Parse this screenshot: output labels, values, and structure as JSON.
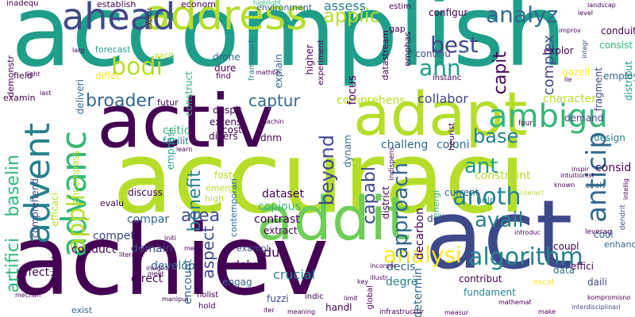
{
  "palette": {
    "dark_purple": "#440154",
    "indigo": "#3e4989",
    "blue": "#31688e",
    "teal": "#26828e",
    "green": "#1f9e89",
    "light_green": "#35b779",
    "yellow_green": "#6ece58",
    "lime": "#b5de2b",
    "yellow": "#fde725",
    "background": "#ffffff"
  },
  "words": [
    {
      "text": "accomplish"
    },
    {
      "text": "accuraci"
    },
    {
      "text": "act"
    },
    {
      "text": "achiev"
    },
    {
      "text": "activ"
    },
    {
      "text": "adapt"
    },
    {
      "text": "address"
    },
    {
      "text": "addit"
    },
    {
      "text": "ahead"
    },
    {
      "text": "advent"
    },
    {
      "text": "advanc"
    },
    {
      "text": "ambigu"
    },
    {
      "text": "anticip"
    },
    {
      "text": "analyz"
    },
    {
      "text": "algorithm"
    },
    {
      "text": "analysi"
    },
    {
      "text": "anoth"
    },
    {
      "text": "approach"
    },
    {
      "text": "applic"
    },
    {
      "text": "appli"
    },
    {
      "text": "artifici"
    },
    {
      "text": "baselin"
    },
    {
      "text": "best"
    },
    {
      "text": "ann"
    },
    {
      "text": "capit"
    },
    {
      "text": "bodi"
    },
    {
      "text": "broader"
    },
    {
      "text": "captur"
    },
    {
      "text": "beyond"
    },
    {
      "text": "capabl"
    },
    {
      "text": "benefit"
    },
    {
      "text": "aspect"
    },
    {
      "text": "area"
    },
    {
      "text": "avail"
    },
    {
      "text": "ant"
    },
    {
      "text": "base"
    },
    {
      "text": "assess"
    },
    {
      "text": "complex"
    },
    {
      "text": "character"
    },
    {
      "text": "collabor"
    },
    {
      "text": "comprehens"
    },
    {
      "text": "challeng"
    },
    {
      "text": "coloni"
    },
    {
      "text": "constraint"
    },
    {
      "text": "current"
    },
    {
      "text": "dataset"
    },
    {
      "text": "copious"
    },
    {
      "text": "compar"
    },
    {
      "text": "contrast"
    },
    {
      "text": "district"
    },
    {
      "text": "decarbon"
    },
    {
      "text": "determin"
    },
    {
      "text": "decis"
    },
    {
      "text": "degre"
    },
    {
      "text": "deliv"
    },
    {
      "text": "crucial"
    },
    {
      "text": "due"
    },
    {
      "text": "delv"
    },
    {
      "text": "develop"
    },
    {
      "text": "domain"
    },
    {
      "text": "direct"
    },
    {
      "text": "compet"
    },
    {
      "text": "conduct"
    },
    {
      "text": "cross"
    },
    {
      "text": "effect"
    },
    {
      "text": "exist"
    },
    {
      "text": "distinct"
    },
    {
      "text": "encount"
    },
    {
      "text": "fuzzi"
    },
    {
      "text": "handl"
    },
    {
      "text": "engag"
    },
    {
      "text": "fundament"
    },
    {
      "text": "infrastructur"
    },
    {
      "text": "contribut"
    },
    {
      "text": "data"
    },
    {
      "text": "coupl"
    },
    {
      "text": "effici"
    },
    {
      "text": "daili"
    },
    {
      "text": "enhanc"
    },
    {
      "text": "escal"
    },
    {
      "text": "interdisciplinari"
    },
    {
      "text": "elucid"
    },
    {
      "text": "cool"
    },
    {
      "text": "dendrit"
    },
    {
      "text": "evolv"
    },
    {
      "text": "consid"
    },
    {
      "text": "inform"
    },
    {
      "text": "design"
    },
    {
      "text": "demand"
    },
    {
      "text": "distribut"
    },
    {
      "text": "employ"
    },
    {
      "text": "fragment"
    },
    {
      "text": "conduit"
    },
    {
      "text": "consist"
    },
    {
      "text": "landscap"
    },
    {
      "text": "continu"
    },
    {
      "text": "deep"
    },
    {
      "text": "explor"
    },
    {
      "text": "improv"
    },
    {
      "text": "integr"
    },
    {
      "text": "gazell"
    },
    {
      "text": "environ"
    },
    {
      "text": "emphas"
    },
    {
      "text": "datastream"
    },
    {
      "text": "gap"
    },
    {
      "text": "estim"
    },
    {
      "text": "configur"
    },
    {
      "text": "furthermor"
    },
    {
      "text": "environment"
    },
    {
      "text": "highlight"
    },
    {
      "text": "econom"
    },
    {
      "text": "establish"
    },
    {
      "text": "inadequ"
    },
    {
      "text": "exploit"
    },
    {
      "text": "forecast"
    },
    {
      "text": "drone"
    },
    {
      "text": "dure"
    },
    {
      "text": "find"
    },
    {
      "text": "excit"
    },
    {
      "text": "differ"
    },
    {
      "text": "construct"
    },
    {
      "text": "deliveri"
    },
    {
      "text": "demonstr"
    },
    {
      "text": "field"
    },
    {
      "text": "light"
    },
    {
      "text": "examin"
    },
    {
      "text": "comprehend"
    },
    {
      "text": "encompass"
    },
    {
      "text": "efficaci"
    },
    {
      "text": "emphasi"
    },
    {
      "text": "critic"
    },
    {
      "text": "facilit"
    },
    {
      "text": "divers"
    },
    {
      "text": "dnm"
    },
    {
      "text": "despit"
    },
    {
      "text": "futur"
    },
    {
      "text": "extens"
    },
    {
      "text": "cost"
    },
    {
      "text": "framework"
    },
    {
      "text": "explain"
    },
    {
      "text": "higher"
    },
    {
      "text": "experiment"
    },
    {
      "text": "focus"
    },
    {
      "text": "dynam"
    },
    {
      "text": "contemporari"
    },
    {
      "text": "foster"
    },
    {
      "text": "emerg"
    },
    {
      "text": "high"
    },
    {
      "text": "extract"
    },
    {
      "text": "discuss"
    },
    {
      "text": "evalu"
    },
    {
      "text": "exampl"
    },
    {
      "text": "global"
    },
    {
      "text": "indispens"
    },
    {
      "text": "heurist"
    },
    {
      "text": "energi"
    },
    {
      "text": "four"
    },
    {
      "text": "deploy"
    },
    {
      "text": "instanc"
    },
    {
      "text": "help"
    },
    {
      "text": "intuitionist"
    },
    {
      "text": "interact"
    },
    {
      "text": "inspir"
    },
    {
      "text": "known"
    },
    {
      "text": "lie"
    },
    {
      "text": "level"
    },
    {
      "text": "leverag"
    },
    {
      "text": "intellig"
    },
    {
      "text": "introduc"
    },
    {
      "text": "illustr"
    },
    {
      "text": "incorpor"
    },
    {
      "text": "insight"
    },
    {
      "text": "initi"
    },
    {
      "text": "literatur"
    },
    {
      "text": "mean"
    },
    {
      "text": "meet"
    },
    {
      "text": "manipul"
    },
    {
      "text": "mechan"
    },
    {
      "text": "key"
    },
    {
      "text": "limit"
    },
    {
      "text": "holist"
    },
    {
      "text": "indic"
    },
    {
      "text": "hold"
    },
    {
      "text": "live"
    },
    {
      "text": "meaning"
    },
    {
      "text": "iter"
    },
    {
      "text": "measur"
    },
    {
      "text": "mathemat"
    },
    {
      "text": "make"
    },
    {
      "text": "kompromisno"
    },
    {
      "text": "mcdm"
    },
    {
      "text": "last"
    },
    {
      "text": "larg"
    },
    {
      "text": "mathbb"
    },
    {
      "text": "machin"
    },
    {
      "text": "learn"
    }
  ]
}
